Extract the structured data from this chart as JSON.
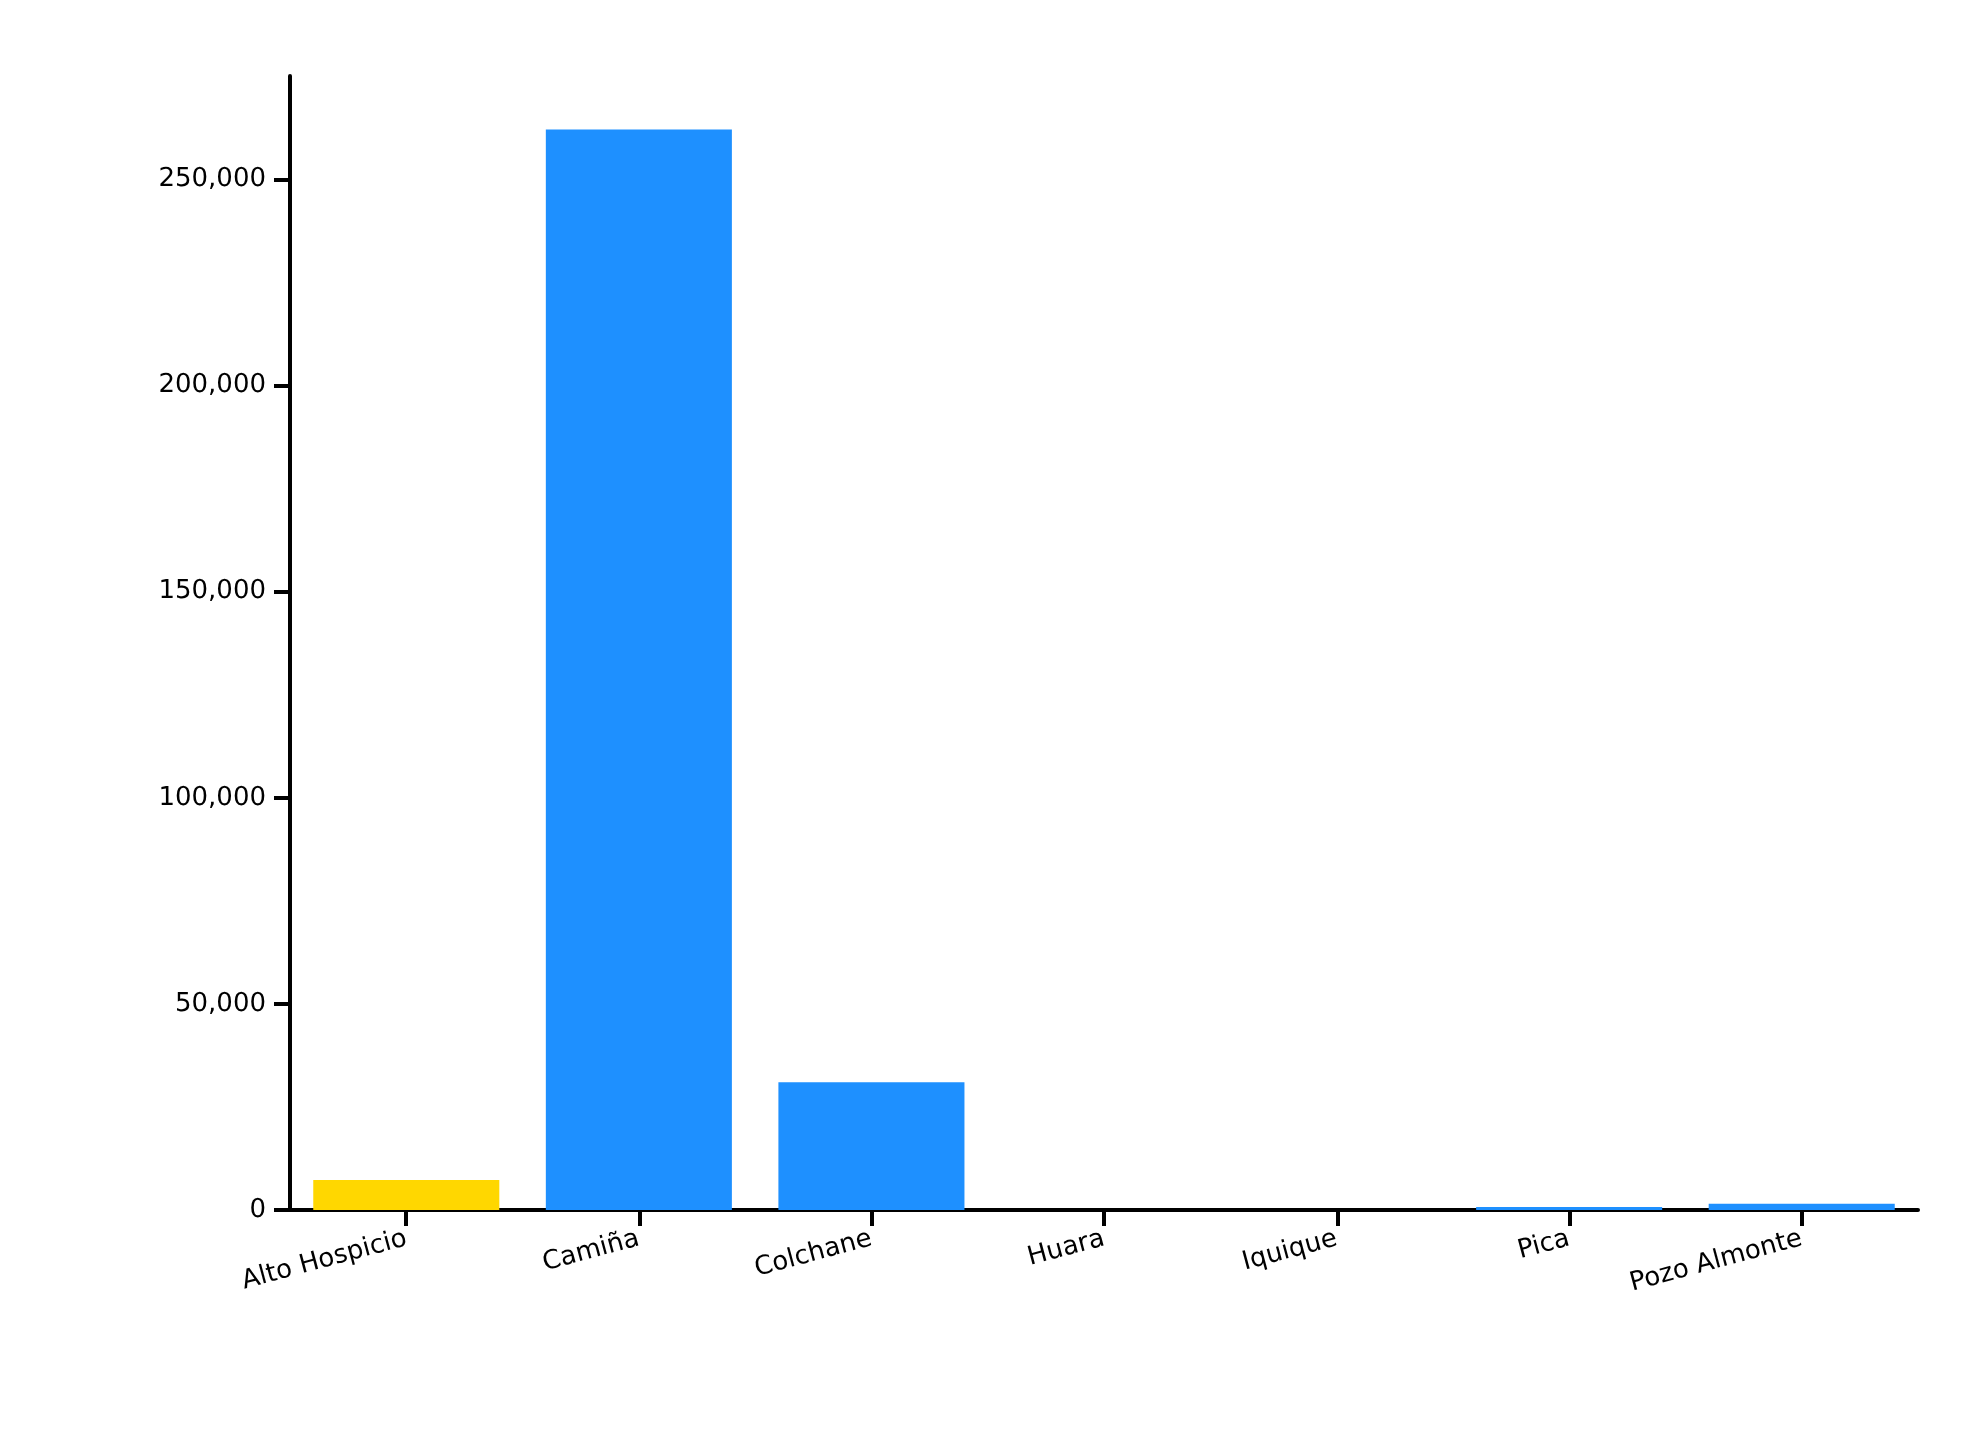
{
  "chart_data": {
    "type": "bar",
    "categories": [
      "Alto Hospicio",
      "Camiña",
      "Colchane",
      "Huara",
      "Iquique",
      "Pica",
      "Pozo Almonte"
    ],
    "values": [
      7300,
      262000,
      31000,
      0,
      0,
      700,
      1500
    ],
    "colors": [
      "#ffd700",
      "#1e90ff",
      "#1e90ff",
      "#1e90ff",
      "#1e90ff",
      "#1e90ff",
      "#1e90ff"
    ],
    "ylim": [
      0,
      275000
    ],
    "yticks": [
      {
        "value": 0,
        "label": "0"
      },
      {
        "value": 50000,
        "label": "50,000"
      },
      {
        "value": 100000,
        "label": "100,000"
      },
      {
        "value": 150000,
        "label": "150,000"
      },
      {
        "value": 200000,
        "label": "200,000"
      },
      {
        "value": 250000,
        "label": "250,000"
      }
    ],
    "grid": false
  }
}
